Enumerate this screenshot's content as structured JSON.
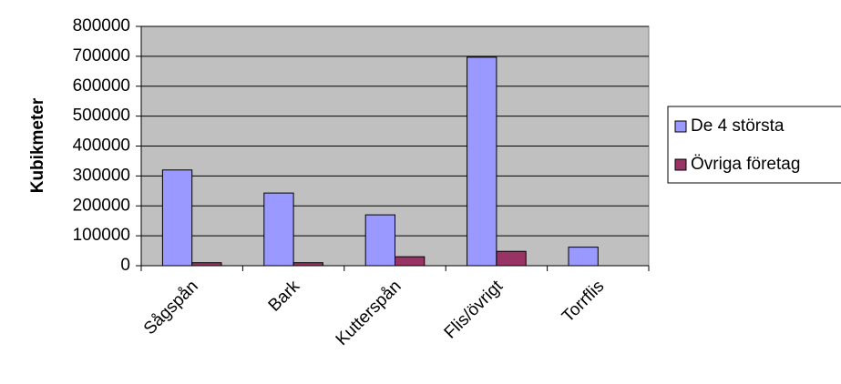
{
  "chart_data": {
    "type": "bar",
    "y_label": "Kubikmeter",
    "categories": [
      "Sågspån",
      "Bark",
      "Kutterspån",
      "Flis/övrigt",
      "Torrflis"
    ],
    "series": [
      {
        "name": "De 4 största",
        "color": "#9999ff",
        "values": [
          320000,
          243000,
          170000,
          697000,
          62000
        ]
      },
      {
        "name": "Övriga företag",
        "color": "#993366",
        "values": [
          10000,
          10000,
          30000,
          48000,
          0
        ]
      }
    ],
    "ylim": [
      0,
      800000
    ],
    "yticks": [
      0,
      100000,
      200000,
      300000,
      400000,
      500000,
      600000,
      700000,
      800000
    ],
    "grid": true,
    "plot_background": "#c0c0c0",
    "legend": "right"
  }
}
